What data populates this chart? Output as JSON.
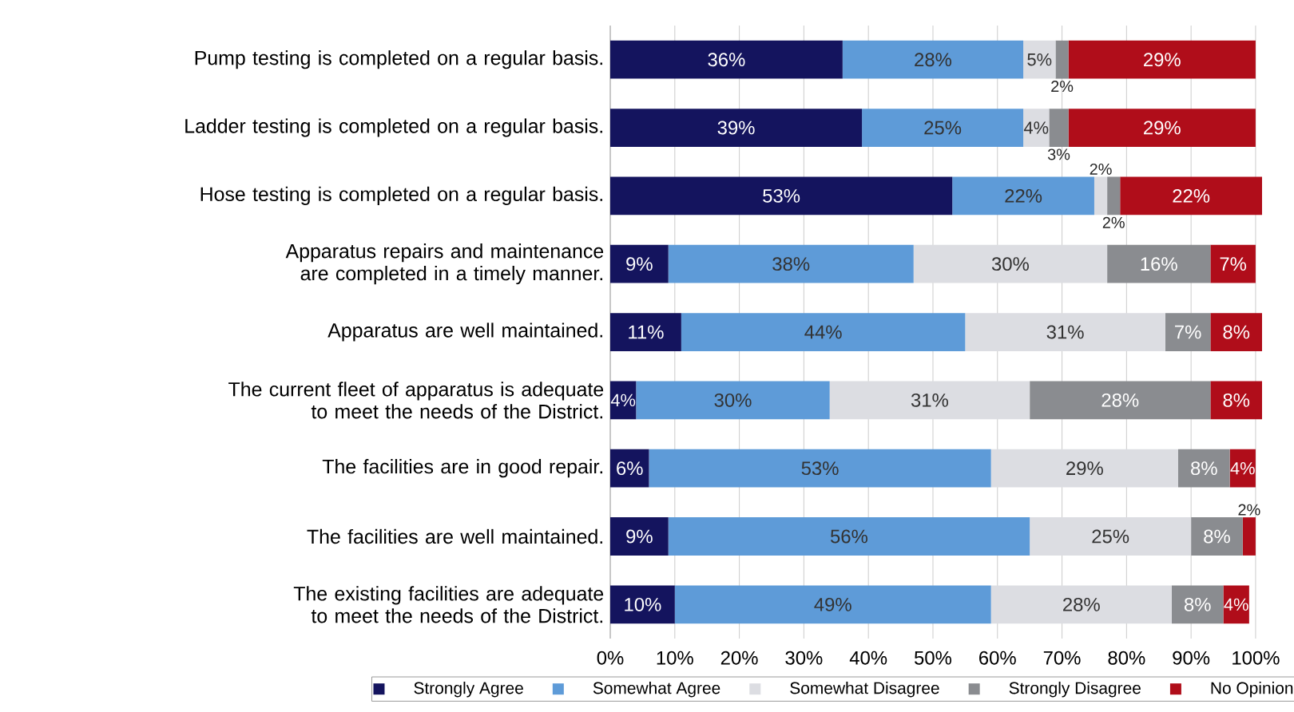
{
  "chart_data": {
    "type": "bar",
    "orientation": "horizontal",
    "stacked": true,
    "categories": [
      "Pump testing is completed on a regular basis.",
      "Ladder testing is completed on a regular basis.",
      "Hose testing is completed on a regular basis.",
      "Apparatus repairs and maintenance are completed in a timely manner.",
      "Apparatus are well maintained.",
      "The current fleet of apparatus is adequate to meet the needs of the District.",
      "The facilities are in good repair.",
      "The facilities are well maintained.",
      "The existing facilities are adequate to meet the needs of the District."
    ],
    "series": [
      {
        "name": "Strongly Agree",
        "color": "#14145e",
        "values": [
          36,
          39,
          53,
          9,
          11,
          4,
          6,
          9,
          10
        ],
        "value_labels": [
          "36%",
          "39%",
          "53%",
          "9%",
          "11%",
          "4%",
          "6%",
          "9%",
          "10%"
        ]
      },
      {
        "name": "Somewhat Agree",
        "color": "#5e9bd8",
        "values": [
          28,
          25,
          22,
          38,
          44,
          30,
          53,
          56,
          49
        ],
        "value_labels": [
          "28%",
          "25%",
          "22%",
          "38%",
          "44%",
          "30%",
          "53%",
          "56%",
          "49%"
        ]
      },
      {
        "name": "Somewhat Disagree",
        "color": "#dcdde2",
        "values": [
          5,
          4,
          2,
          30,
          31,
          31,
          29,
          25,
          28
        ],
        "value_labels": [
          "5%",
          "4%",
          "2%",
          "30%",
          "31%",
          "31%",
          "29%",
          "25%",
          "28%"
        ]
      },
      {
        "name": "Strongly Disagree",
        "color": "#8a8c90",
        "values": [
          2,
          3,
          2,
          16,
          7,
          28,
          8,
          8,
          8
        ],
        "value_labels": [
          "2%",
          "3%",
          "2%",
          "16%",
          "7%",
          "28%",
          "8%",
          "8%",
          "8%"
        ]
      },
      {
        "name": "No Opinion",
        "color": "#b00d1a",
        "values": [
          29,
          29,
          22,
          7,
          8,
          8,
          4,
          2,
          4
        ],
        "value_labels": [
          "29%",
          "29%",
          "22%",
          "7%",
          "8%",
          "8%",
          "4%",
          "2%",
          "4%"
        ]
      }
    ],
    "xlim": [
      0,
      101
    ],
    "xticks": [
      {
        "value": 0,
        "label": "0%"
      },
      {
        "value": 10,
        "label": "10%"
      },
      {
        "value": 20,
        "label": "20%"
      },
      {
        "value": 30,
        "label": "30%"
      },
      {
        "value": 40,
        "label": "40%"
      },
      {
        "value": 50,
        "label": "50%"
      },
      {
        "value": 60,
        "label": "60%"
      },
      {
        "value": 70,
        "label": "70%"
      },
      {
        "value": 80,
        "label": "80%"
      },
      {
        "value": 90,
        "label": "90%"
      },
      {
        "value": 100,
        "label": "100%"
      }
    ],
    "grid": "x",
    "legend": "bottom"
  }
}
